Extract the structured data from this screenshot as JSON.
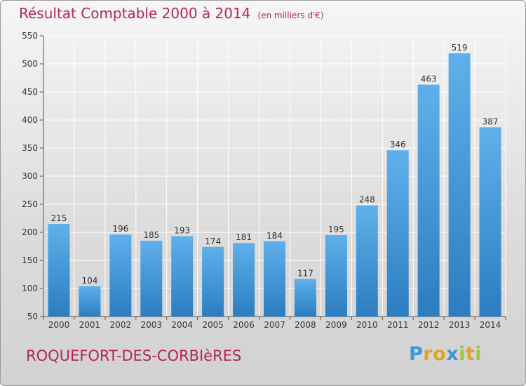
{
  "chart_data": {
    "type": "bar",
    "title": "Résultat Comptable 2000 à 2014",
    "subtitle": "(en milliers d'€)",
    "categories": [
      "2000",
      "2001",
      "2002",
      "2003",
      "2004",
      "2005",
      "2006",
      "2007",
      "2008",
      "2009",
      "2010",
      "2011",
      "2012",
      "2013",
      "2014"
    ],
    "values": [
      215,
      104,
      196,
      185,
      193,
      174,
      181,
      184,
      117,
      195,
      248,
      346,
      463,
      519,
      387
    ],
    "ylim": [
      50,
      550
    ],
    "yticks": [
      50,
      100,
      150,
      200,
      250,
      300,
      350,
      400,
      450,
      500,
      550
    ],
    "grid": true,
    "xlabel": "",
    "ylabel": ""
  },
  "footer": {
    "commune": "ROQUEFORT-DES-CORBIèRES",
    "brand_letters": [
      "P",
      "r",
      "o",
      "x",
      "i",
      "t",
      "i"
    ]
  },
  "colors": {
    "title": "#b5245c",
    "bar_light": "#5fb0ea",
    "bar_dark": "#2b7dc0",
    "brand": [
      "#3a9ad9",
      "#e2a12b",
      "#e2a12b",
      "#3a9ad9",
      "#9acd32",
      "#e2a12b",
      "#9acd32"
    ]
  }
}
